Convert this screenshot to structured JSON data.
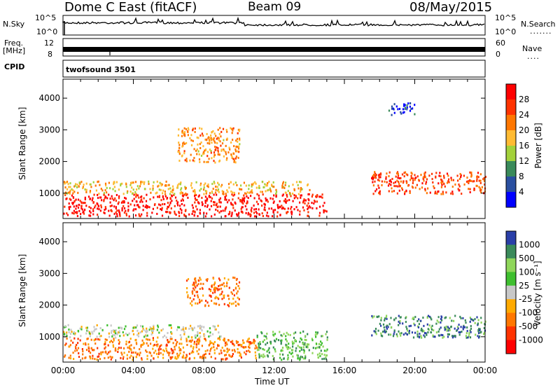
{
  "header": {
    "title": "Dome C East (fitACF)",
    "beam": "Beam 09",
    "date": "08/May/2015"
  },
  "strips": {
    "nsky_label": "N.Sky",
    "nsky_ticks": [
      "10^5",
      "10^0"
    ],
    "nsearch_label": "N.Search",
    "nsearch_ticks": [
      "10^5",
      "10^0"
    ],
    "nsearch_dots": ".......",
    "freq_label_top": "Freq.",
    "freq_label_bottom": "[MHz]",
    "freq_ticks": [
      "12",
      "8"
    ],
    "nave_label": "Nave",
    "nave_ticks": [
      "60",
      "0"
    ],
    "nave_dots": "....",
    "cpid_label": "CPID",
    "cpid_value": "twofsound 3501"
  },
  "icons": [
    "colorbar-power",
    "colorbar-velocity"
  ],
  "chart_data": [
    {
      "type": "heatmap",
      "title": "",
      "xlabel": "Time UT",
      "ylabel": "Slant Range [km]",
      "xlim": [
        "00:00",
        "24:00"
      ],
      "ylim": [
        200,
        4600
      ],
      "x_ticks": [
        "00:00",
        "04:00",
        "08:00",
        "12:00",
        "16:00",
        "20:00",
        "00:00"
      ],
      "y_ticks": [
        1000,
        2000,
        3000,
        4000
      ],
      "colorbar_label": "Power [dB]",
      "colorbar_ticks": [
        "28",
        "24",
        "20",
        "16",
        "12",
        "8",
        "4"
      ],
      "colorbar_colors": [
        "#ff0000",
        "#ff3300",
        "#ff7700",
        "#ffbb33",
        "#a3d13b",
        "#3a8a5a",
        "#2a4fa0",
        "#0000ff"
      ],
      "regions": [
        {
          "t0": 0.0,
          "t1": 15.0,
          "r0": 300,
          "r1": 1000,
          "value": 28
        },
        {
          "t0": 0.0,
          "t1": 14.0,
          "r0": 1000,
          "r1": 1400,
          "value": 18
        },
        {
          "t0": 6.5,
          "t1": 10.0,
          "r0": 2000,
          "r1": 3100,
          "value": 20
        },
        {
          "t0": 17.5,
          "t1": 24.0,
          "r0": 1000,
          "r1": 1700,
          "value": 24
        },
        {
          "t0": 18.5,
          "t1": 20.0,
          "r0": 3500,
          "r1": 3900,
          "value": 6
        }
      ]
    },
    {
      "type": "heatmap",
      "title": "",
      "xlabel": "Time UT",
      "ylabel": "Slant Range [km]",
      "xlim": [
        "00:00",
        "24:00"
      ],
      "ylim": [
        200,
        4600
      ],
      "x_ticks": [
        "00:00",
        "04:00",
        "08:00",
        "12:00",
        "16:00",
        "20:00",
        "00:00"
      ],
      "y_ticks": [
        1000,
        2000,
        3000,
        4000
      ],
      "colorbar_label": "Velocity [m s⁻¹]",
      "colorbar_ticks": [
        "1000",
        "500",
        "100",
        "25",
        "-25",
        "-100",
        "-500",
        "-1000"
      ],
      "colorbar_colors": [
        "#2a3fa8",
        "#3a8a5a",
        "#8fd65a",
        "#3fbf2f",
        "#c8c8c8",
        "#ffaa00",
        "#ff7700",
        "#ff3300",
        "#ff0000"
      ],
      "regions": [
        {
          "t0": 0.0,
          "t1": 11.0,
          "r0": 300,
          "r1": 1000,
          "value": -100
        },
        {
          "t0": 0.0,
          "t1": 9.0,
          "r0": 1000,
          "r1": 1400,
          "value": 0
        },
        {
          "t0": 11.0,
          "t1": 15.0,
          "r0": 300,
          "r1": 1200,
          "value": 100
        },
        {
          "t0": 7.0,
          "t1": 10.0,
          "r0": 2000,
          "r1": 2900,
          "value": -100
        },
        {
          "t0": 17.5,
          "t1": 24.0,
          "r0": 1000,
          "r1": 1700,
          "value": 500
        }
      ]
    }
  ]
}
